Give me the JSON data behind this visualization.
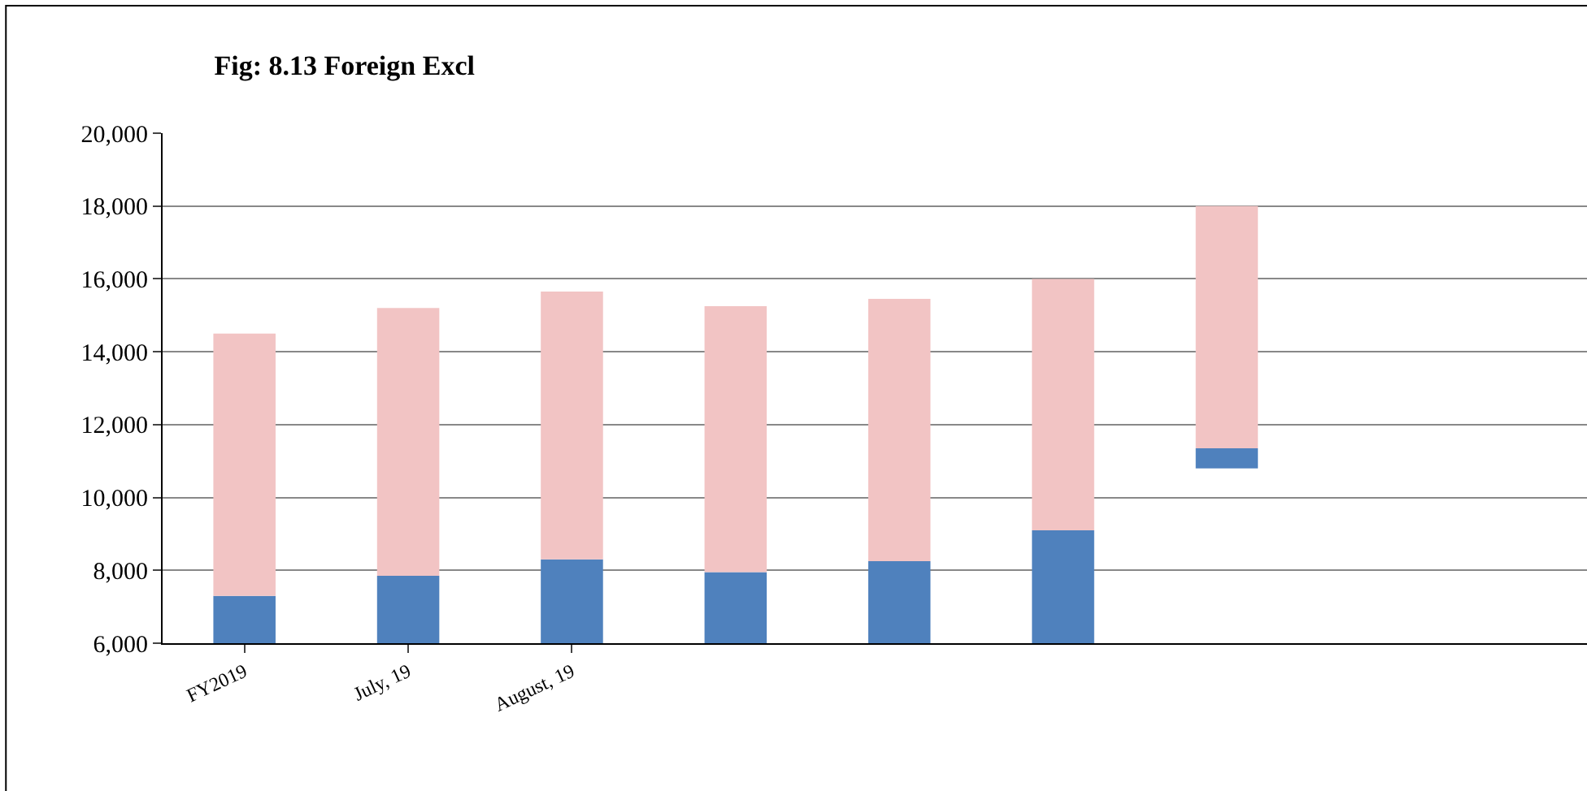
{
  "chart_data": {
    "type": "bar",
    "title": "Fig: 8.13 Foreign Excl",
    "categories": [
      "FY2019",
      "July, 19",
      "August, 19",
      null,
      null,
      null,
      null
    ],
    "series": [
      {
        "color": "#4f81bd",
        "base": [
          6000,
          6000,
          6000,
          6000,
          6000,
          6000,
          10800
        ],
        "values": [
          1300,
          1850,
          2300,
          1950,
          2250,
          3100,
          550
        ]
      },
      {
        "color": "#f2c4c4",
        "base": [
          7300,
          7850,
          8300,
          7950,
          8250,
          9100,
          11350
        ],
        "values": [
          7200,
          7350,
          7350,
          7300,
          7200,
          6900,
          6650
        ]
      }
    ],
    "ylim": [
      6000,
      20000
    ],
    "yticks": [
      {
        "value": 6000,
        "label": "6,000"
      },
      {
        "value": 8000,
        "label": "8,000"
      },
      {
        "value": 10000,
        "label": "10,000"
      },
      {
        "value": 12000,
        "label": "12,000"
      },
      {
        "value": 14000,
        "label": "14,000"
      },
      {
        "value": 16000,
        "label": "16,000"
      },
      {
        "value": 18000,
        "label": "18,000"
      },
      {
        "value": 20000,
        "label": "20,000"
      }
    ],
    "grid": "y",
    "legend": false
  }
}
